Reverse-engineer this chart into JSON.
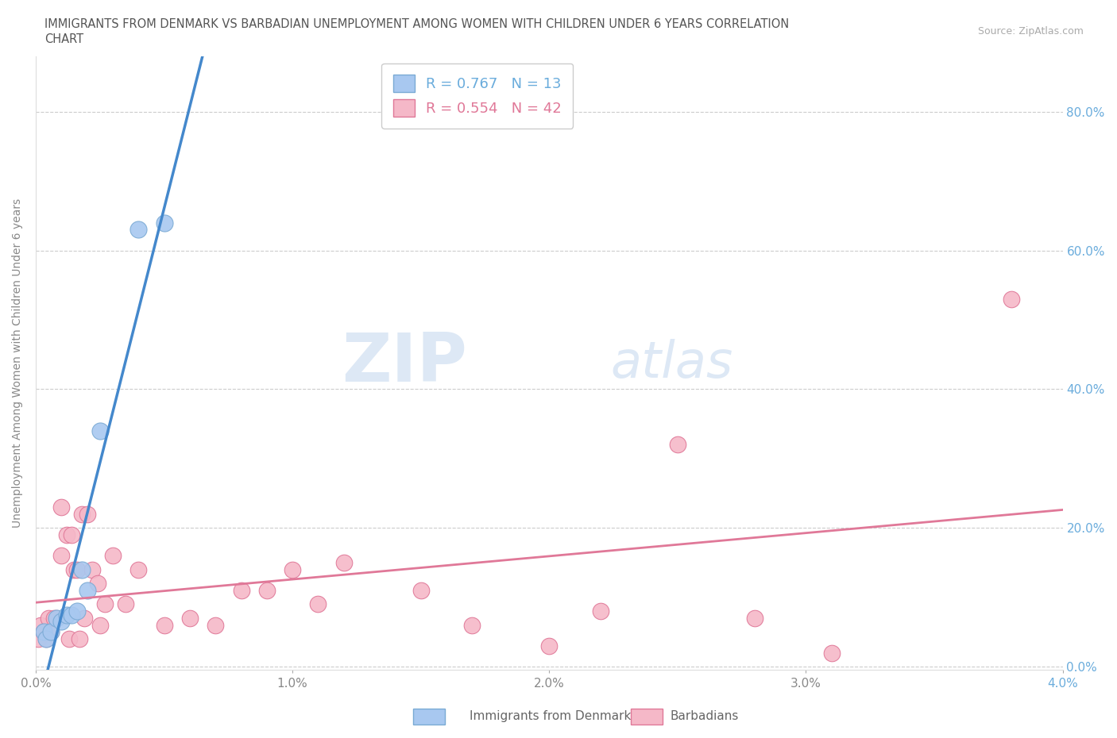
{
  "title_line1": "IMMIGRANTS FROM DENMARK VS BARBADIAN UNEMPLOYMENT AMONG WOMEN WITH CHILDREN UNDER 6 YEARS CORRELATION",
  "title_line2": "CHART",
  "source_text": "Source: ZipAtlas.com",
  "ylabel": "Unemployment Among Women with Children Under 6 years",
  "xlim": [
    0.0,
    0.04
  ],
  "ylim": [
    -0.005,
    0.88
  ],
  "xticks": [
    0.0,
    0.01,
    0.02,
    0.03,
    0.04
  ],
  "xtick_labels": [
    "0.0%",
    "1.0%",
    "2.0%",
    "3.0%",
    "4.0%"
  ],
  "yticks": [
    0.0,
    0.2,
    0.4,
    0.6,
    0.8
  ],
  "ytick_labels": [
    "0.0%",
    "20.0%",
    "40.0%",
    "60.0%",
    "80.0%"
  ],
  "denmark_color": "#a8c8f0",
  "denmark_edge_color": "#7aaad4",
  "barbadian_color": "#f5b8c8",
  "barbadian_edge_color": "#e07898",
  "denmark_line_color": "#4488cc",
  "barbadian_line_color": "#e07898",
  "dashed_line_color": "#aaaaaa",
  "legend_R_denmark": "R = 0.767",
  "legend_N_denmark": "N = 13",
  "legend_R_barbadian": "R = 0.554",
  "legend_N_barbadian": "N = 42",
  "watermark_zip": "ZIP",
  "watermark_atlas": "atlas",
  "background_color": "#ffffff",
  "grid_color": "#cccccc",
  "axis_label_color": "#6aacdc",
  "denmark_scatter_x": [
    0.0003,
    0.0004,
    0.0006,
    0.0008,
    0.001,
    0.0012,
    0.0014,
    0.0016,
    0.0018,
    0.002,
    0.0025,
    0.004,
    0.005
  ],
  "denmark_scatter_y": [
    0.05,
    0.04,
    0.05,
    0.07,
    0.065,
    0.075,
    0.075,
    0.08,
    0.14,
    0.11,
    0.34,
    0.63,
    0.64
  ],
  "barbadian_scatter_x": [
    0.0001,
    0.0002,
    0.0003,
    0.0004,
    0.0005,
    0.0006,
    0.0007,
    0.0008,
    0.001,
    0.001,
    0.0012,
    0.0013,
    0.0014,
    0.0015,
    0.0016,
    0.0017,
    0.0018,
    0.0019,
    0.002,
    0.0022,
    0.0024,
    0.0025,
    0.0027,
    0.003,
    0.0035,
    0.004,
    0.005,
    0.006,
    0.007,
    0.008,
    0.009,
    0.01,
    0.011,
    0.012,
    0.015,
    0.017,
    0.02,
    0.022,
    0.025,
    0.028,
    0.031,
    0.038
  ],
  "barbadian_scatter_y": [
    0.04,
    0.06,
    0.05,
    0.04,
    0.07,
    0.05,
    0.07,
    0.07,
    0.16,
    0.23,
    0.19,
    0.04,
    0.19,
    0.14,
    0.14,
    0.04,
    0.22,
    0.07,
    0.22,
    0.14,
    0.12,
    0.06,
    0.09,
    0.16,
    0.09,
    0.14,
    0.06,
    0.07,
    0.06,
    0.11,
    0.11,
    0.14,
    0.09,
    0.15,
    0.11,
    0.06,
    0.03,
    0.08,
    0.32,
    0.07,
    0.02,
    0.53
  ],
  "dk_line_x_start": 0.0,
  "dk_line_x_end": 0.025,
  "dash_line_x_start": 0.024,
  "dash_line_x_end": 0.04
}
